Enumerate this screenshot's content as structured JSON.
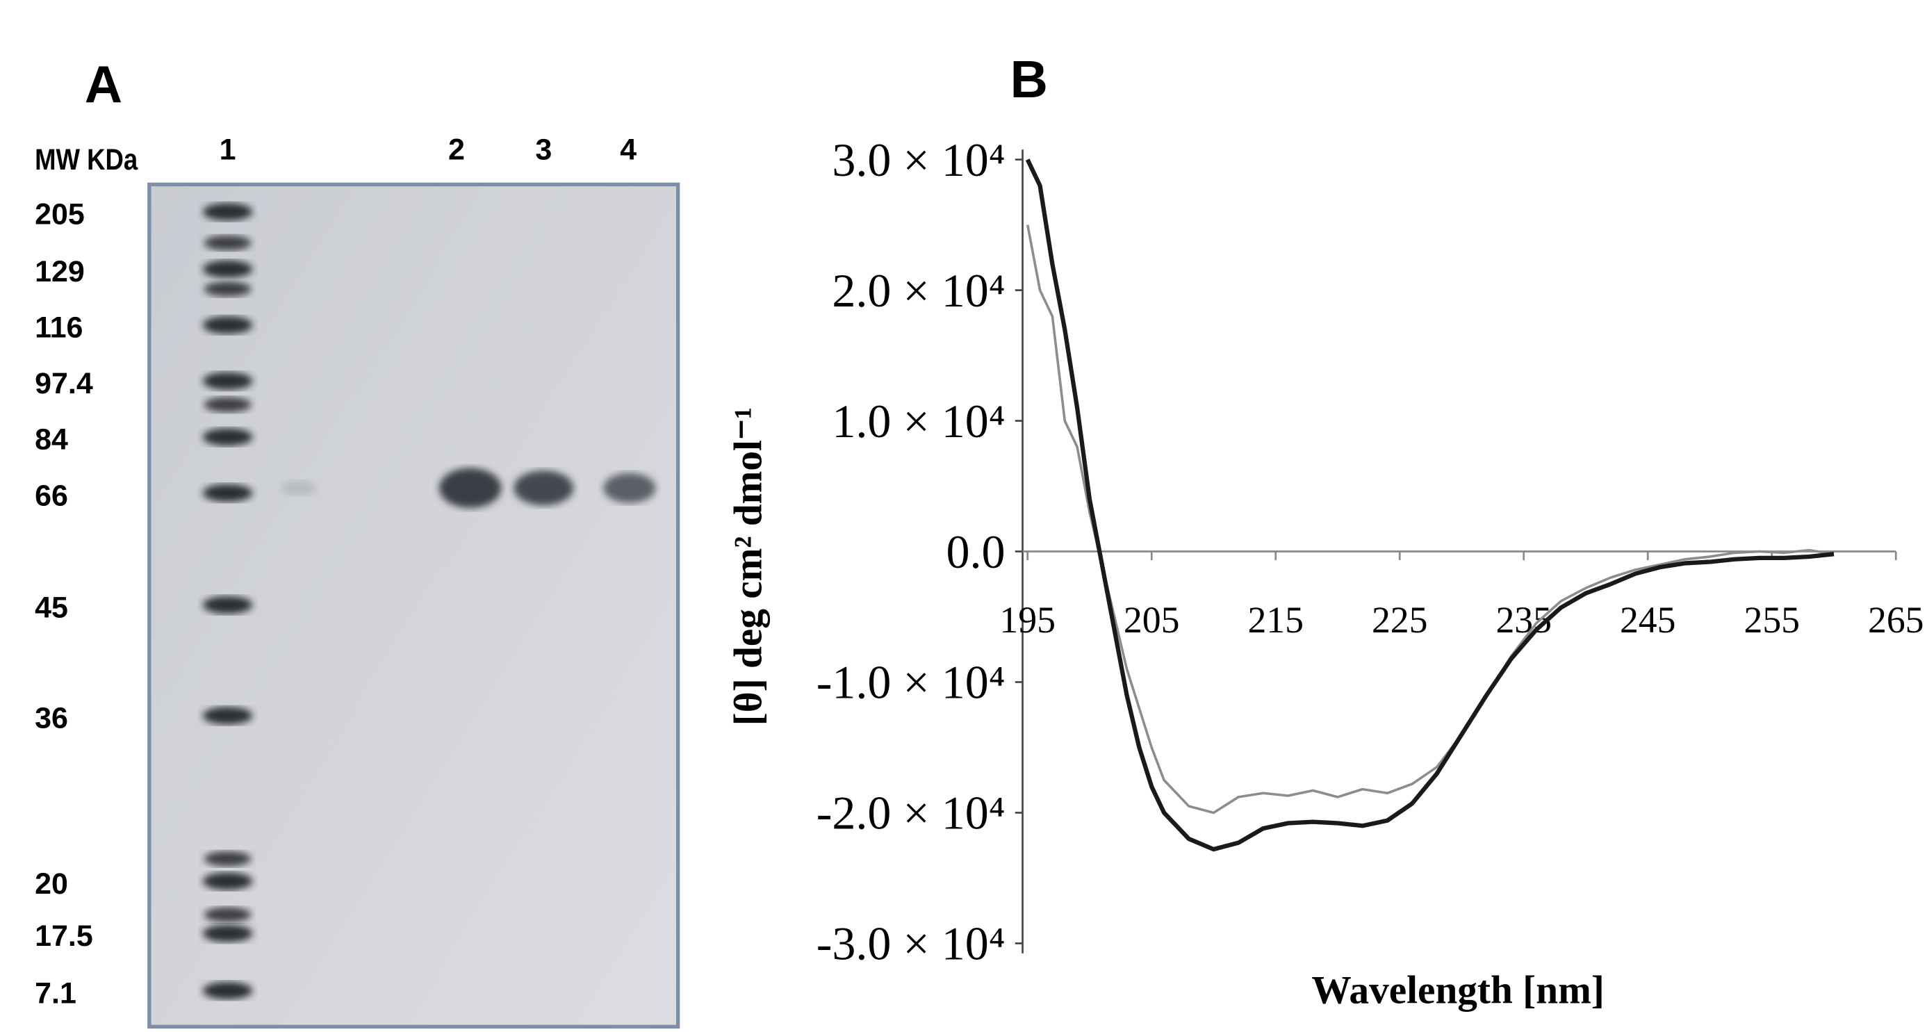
{
  "panels": [
    "A",
    "B"
  ],
  "gel": {
    "header": "MW KDa",
    "lanes": [
      "1",
      "2",
      "3",
      "4"
    ],
    "markers": [
      "205",
      "129",
      "116",
      "97.4",
      "84",
      "66",
      "45",
      "36",
      "20",
      "17.5",
      "7.1"
    ]
  },
  "chart_data": {
    "type": "line",
    "xlabel": "Wavelength [nm]",
    "ylabel": "[θ] deg cm² dmol⁻¹",
    "x": [
      195,
      196,
      197,
      198,
      199,
      200,
      201,
      202,
      203,
      204,
      205,
      206,
      208,
      210,
      212,
      214,
      216,
      218,
      220,
      222,
      224,
      226,
      228,
      230,
      232,
      234,
      236,
      238,
      240,
      242,
      244,
      246,
      248,
      250,
      252,
      254,
      256,
      258,
      260
    ],
    "series": [
      {
        "color": "#1a1a1a",
        "values": [
          30000,
          28000,
          22000,
          17000,
          11000,
          4000,
          -1000,
          -6000,
          -11000,
          -15000,
          -18000,
          -20000,
          -22000,
          -22800,
          -22300,
          -21200,
          -20800,
          -20700,
          -20800,
          -21000,
          -20600,
          -19300,
          -17000,
          -14000,
          -11000,
          -8200,
          -6000,
          -4300,
          -3200,
          -2500,
          -1700,
          -1200,
          -900,
          -800,
          -600,
          -500,
          -500,
          -400,
          -200
        ]
      },
      {
        "color": "#8c8c8c",
        "values": [
          25000,
          20000,
          18000,
          10000,
          8000,
          3000,
          -1000,
          -5000,
          -9000,
          -12000,
          -15000,
          -17500,
          -19500,
          -20000,
          -18800,
          -18500,
          -18700,
          -18300,
          -18800,
          -18200,
          -18500,
          -17800,
          -16500,
          -14000,
          -11000,
          -8000,
          -5500,
          -3800,
          -2800,
          -2000,
          -1400,
          -1000,
          -600,
          -400,
          -100,
          0,
          -100,
          100,
          -200
        ]
      }
    ],
    "xlim": [
      195,
      265
    ],
    "xticks": [
      195,
      205,
      215,
      225,
      235,
      245,
      255,
      265
    ],
    "ylim": [
      -30000,
      30000
    ],
    "yticks": [
      {
        "value": 30000,
        "label": "3.0 × 10⁴"
      },
      {
        "value": 20000,
        "label": "2.0 × 10⁴"
      },
      {
        "value": 10000,
        "label": "1.0 × 10⁴"
      },
      {
        "value": 0,
        "label": "0.0"
      },
      {
        "value": -10000,
        "label": "-1.0 × 10⁴"
      },
      {
        "value": -20000,
        "label": "-2.0 × 10⁴"
      },
      {
        "value": -30000,
        "label": "-3.0 × 10⁴"
      }
    ]
  }
}
